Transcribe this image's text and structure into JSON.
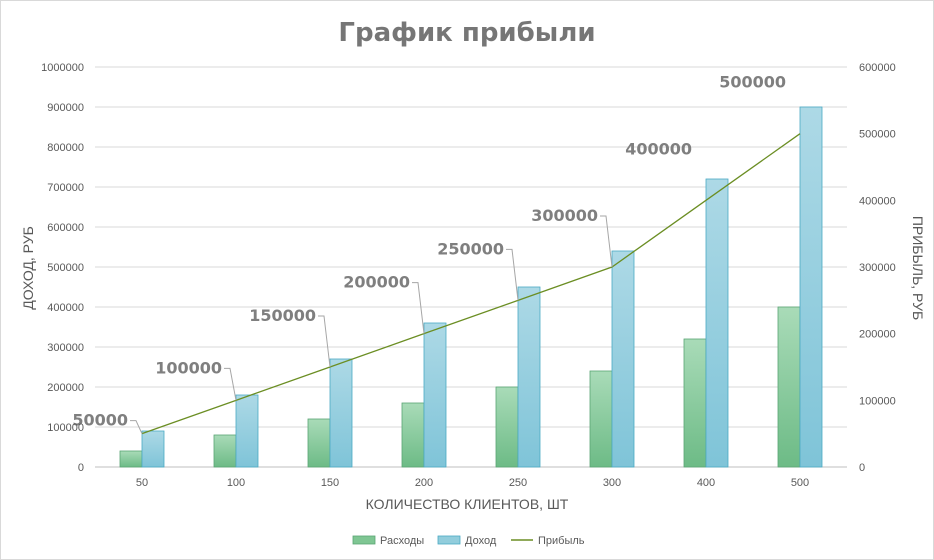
{
  "chart_data": {
    "type": "bar",
    "title": "График прибыли",
    "xlabel": "КОЛИЧЕСТВО КЛИЕНТОВ, ШТ",
    "ylabel": "ДОХОД, РУБ",
    "y2label": "ПРИБЫЛЬ, РУБ",
    "categories": [
      "50",
      "100",
      "150",
      "200",
      "250",
      "300",
      "400",
      "500"
    ],
    "ylim": [
      0,
      1000000
    ],
    "y2lim": [
      0,
      600000
    ],
    "yticks": [
      "0",
      "100000",
      "200000",
      "300000",
      "400000",
      "500000",
      "600000",
      "700000",
      "800000",
      "900000",
      "1000000"
    ],
    "y2ticks": [
      "0",
      "100000",
      "200000",
      "300000",
      "400000",
      "500000",
      "600000"
    ],
    "grid": true,
    "legend_position": "bottom",
    "series": [
      {
        "name": "Расходы",
        "type": "bar",
        "axis": "left",
        "color": "#7fc693",
        "values": [
          40000,
          80000,
          120000,
          160000,
          200000,
          240000,
          320000,
          400000
        ]
      },
      {
        "name": "Доход",
        "type": "bar",
        "axis": "left",
        "color": "#92cddc",
        "values": [
          90000,
          180000,
          270000,
          360000,
          450000,
          540000,
          720000,
          900000
        ]
      },
      {
        "name": "Прибыль",
        "type": "line",
        "axis": "right",
        "color": "#6b8e23",
        "values": [
          50000,
          100000,
          150000,
          200000,
          250000,
          300000,
          400000,
          500000
        ]
      }
    ],
    "data_labels": [
      "50000",
      "100000",
      "150000",
      "200000",
      "250000",
      "300000",
      "400000",
      "500000"
    ]
  }
}
